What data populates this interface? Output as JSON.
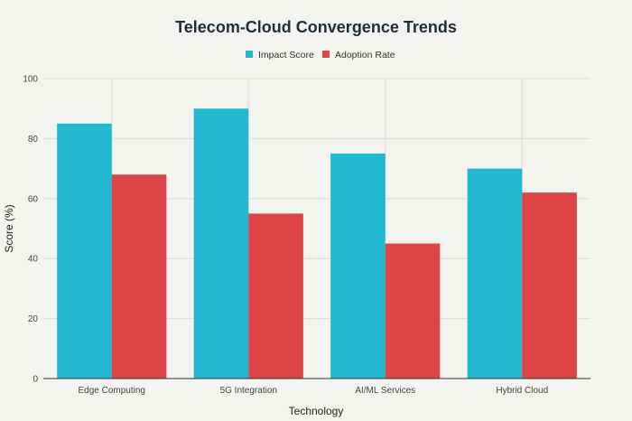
{
  "chart_data": {
    "type": "bar",
    "title": "Telecom-Cloud Convergence Trends",
    "xlabel": "Technology",
    "ylabel": "Score (%)",
    "categories": [
      "Edge Computing",
      "5G Integration",
      "AI/ML Services",
      "Hybrid Cloud"
    ],
    "series": [
      {
        "name": "Impact Score",
        "values": [
          85,
          90,
          75,
          70
        ],
        "color": "#22b8cf"
      },
      {
        "name": "Adoption Rate",
        "values": [
          68,
          55,
          45,
          62
        ],
        "color": "#dc4446"
      }
    ],
    "ylim": [
      0,
      100
    ],
    "yticks": [
      0,
      20,
      40,
      60,
      80,
      100
    ],
    "grid": true,
    "legend_position": "top-center"
  }
}
